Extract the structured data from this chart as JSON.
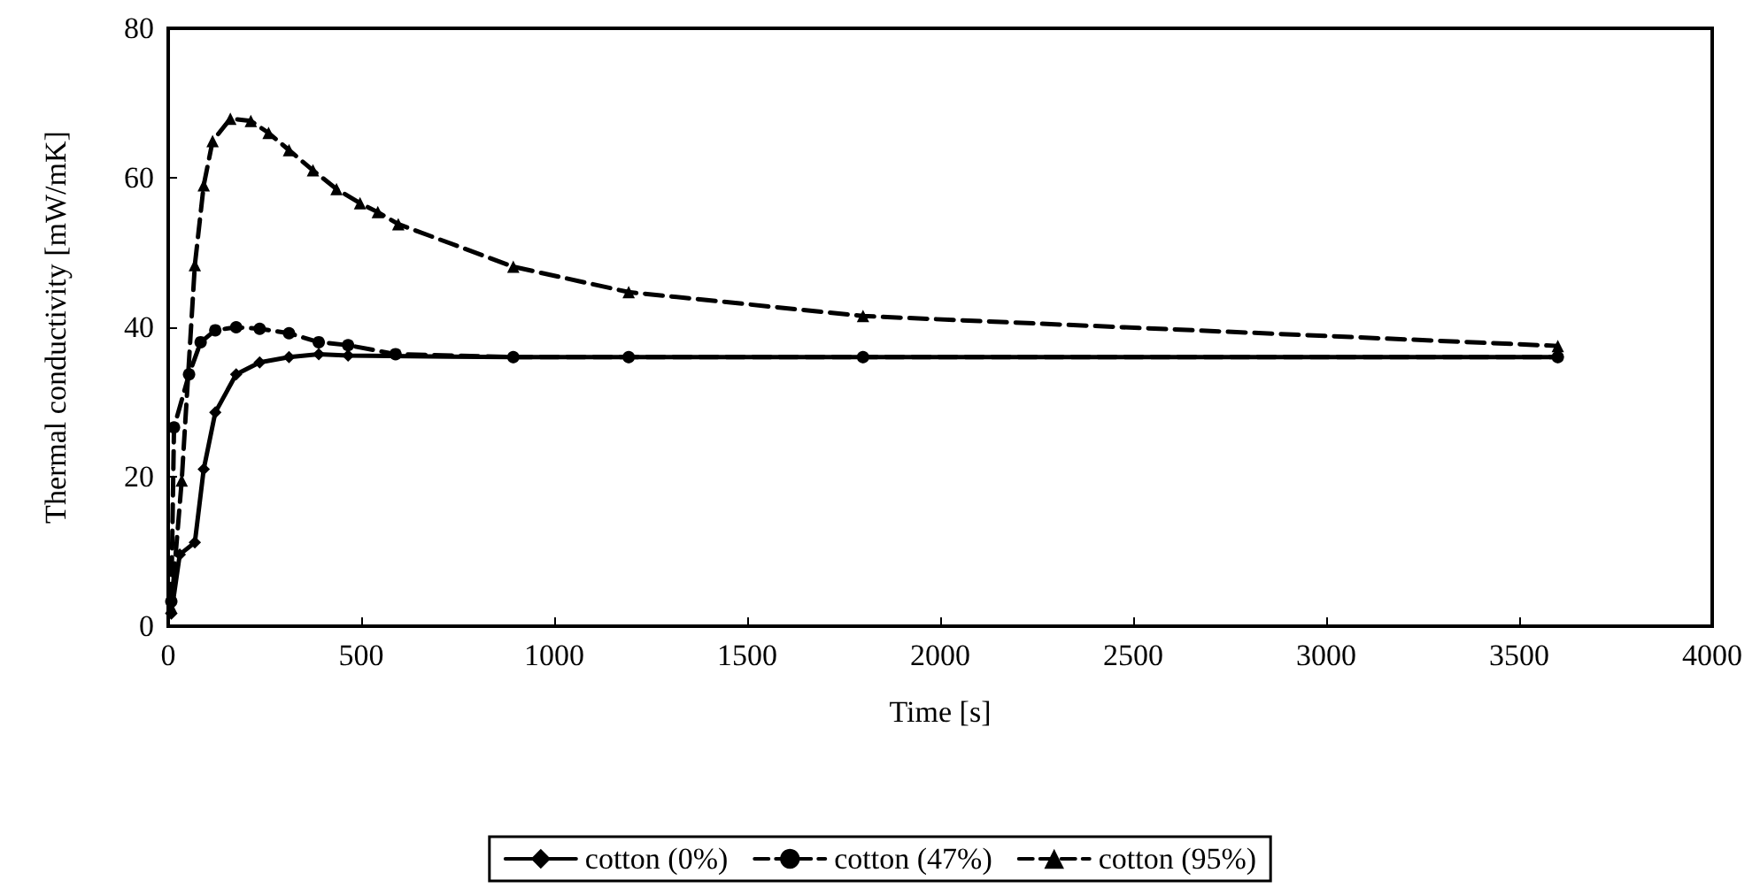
{
  "chart_data": {
    "type": "line",
    "xlabel": "Time [s]",
    "ylabel": "Thermal conductivity [mW/mK]",
    "xlim": [
      0,
      4000
    ],
    "xticks": [
      0,
      500,
      1000,
      1500,
      2000,
      2500,
      3000,
      3500,
      4000
    ],
    "ylim": [
      0,
      80
    ],
    "yticks": [
      0,
      20,
      40,
      60,
      80
    ],
    "grid": false,
    "legend": "bottom",
    "series": [
      {
        "name": "cotton (0%)",
        "color": "#000000",
        "marker": "diamond",
        "line_style": "solid",
        "x": [
          8,
          30,
          69,
          92,
          122,
          176,
          237,
          313,
          390,
          466,
          894,
          1193,
          1800,
          3600
        ],
        "values": [
          1.7,
          9.6,
          11.2,
          21,
          28.6,
          33.7,
          35.3,
          36,
          36.4,
          36.2,
          36,
          36,
          36,
          36
        ]
      },
      {
        "name": "cotton (47%)",
        "color": "#000000",
        "marker": "circle",
        "line_style": "dashed",
        "x": [
          8,
          15,
          54,
          84,
          122,
          176,
          237,
          313,
          390,
          466,
          589,
          894,
          1193,
          1800,
          3600
        ],
        "values": [
          3.3,
          26.6,
          33.7,
          38,
          39.6,
          40,
          39.8,
          39.2,
          38,
          37.6,
          36.4,
          36,
          36,
          36,
          36
        ]
      },
      {
        "name": "cotton (95%)",
        "color": "#000000",
        "marker": "triangle",
        "line_style": "dashed",
        "x": [
          8,
          35,
          69,
          92,
          115,
          161,
          214,
          260,
          313,
          375,
          436,
          497,
          543,
          596,
          894,
          1193,
          1800,
          3600
        ],
        "values": [
          2.5,
          19.5,
          48.3,
          59,
          64.9,
          67.9,
          67.6,
          66,
          63.7,
          61,
          58.5,
          56.6,
          55.4,
          53.8,
          48.1,
          44.7,
          41.5,
          37.5
        ]
      }
    ]
  }
}
